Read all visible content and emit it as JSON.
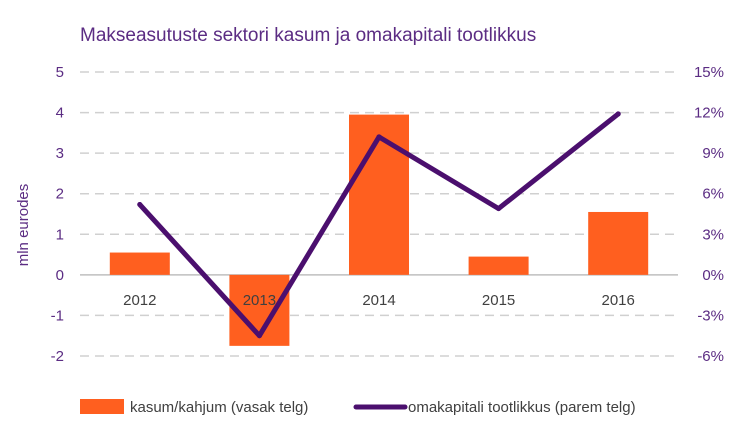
{
  "chart_data": {
    "type": "bar",
    "title": "Makseasutuste sektori kasum ja omakapitali tootlikkus",
    "categories": [
      "2012",
      "2013",
      "2014",
      "2015",
      "2016"
    ],
    "ylabel": "mln eurodes",
    "ylim": [
      -2,
      5
    ],
    "yticks": [
      "5",
      "4",
      "3",
      "2",
      "1",
      "0",
      "-1",
      "-2"
    ],
    "y2lim": [
      -6,
      15
    ],
    "y2ticks": [
      "15%",
      "12%",
      "9%",
      "6%",
      "3%",
      "0%",
      "-3%",
      "-6%"
    ],
    "series": [
      {
        "name": "kasum/kahjum (vasak telg)",
        "kind": "bar",
        "axis": "left",
        "values": [
          0.55,
          -1.75,
          3.95,
          0.45,
          1.55
        ],
        "color": "#ff5f1f"
      },
      {
        "name": "omakapitali tootlikkus (parem telg)",
        "kind": "line",
        "axis": "right",
        "values": [
          5.2,
          -4.5,
          10.2,
          4.9,
          11.9
        ],
        "color": "#4b0f6e"
      }
    ],
    "grid": true,
    "legend": "bottom"
  },
  "colors": {
    "text_accent": "#5b2c83",
    "bar": "#ff5f1f",
    "line": "#4b0f6e",
    "grid": "#d0d0d0"
  }
}
